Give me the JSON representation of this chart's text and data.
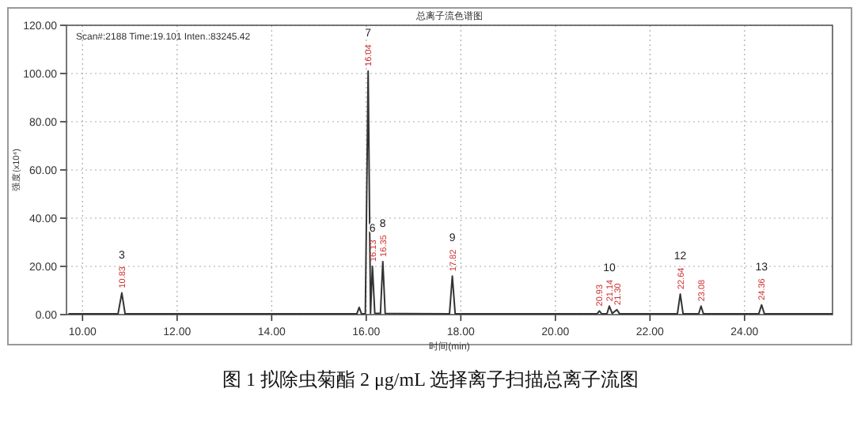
{
  "chart_data": {
    "type": "line",
    "title": "总离子流色谱图",
    "xlabel": "时间(min)",
    "ylabel": "强度(x10⁴)",
    "annotations": [
      "Scan#:2188  Time:19.101  Inten.:83245.42",
      "图 1  拟除虫菊酯 2 μg/mL 选择离子扫描总离子流图",
      {
        "text": "10.83",
        "x": 10.83,
        "y": 9
      },
      {
        "text": "3",
        "x": 10.83,
        "y": 9
      },
      {
        "text": "16.04",
        "x": 16.04,
        "y": 101
      },
      {
        "text": "7",
        "x": 16.04,
        "y": 101
      },
      {
        "text": "16.13",
        "x": 16.13,
        "y": 20
      },
      {
        "text": "6",
        "x": 16.13,
        "y": 20
      },
      {
        "text": "16.35",
        "x": 16.35,
        "y": 22
      },
      {
        "text": "8",
        "x": 16.35,
        "y": 22
      },
      {
        "text": "17.82",
        "x": 17.82,
        "y": 16
      },
      {
        "text": "9",
        "x": 17.82,
        "y": 16
      },
      {
        "text": "20.93",
        "x": 20.93,
        "y": 1.5
      },
      {
        "text": "21.14",
        "x": 21.14,
        "y": 3.5
      },
      {
        "text": "10",
        "x": 21.14,
        "y": 3.5
      },
      {
        "text": "21.30",
        "x": 21.3,
        "y": 2
      },
      {
        "text": "22.64",
        "x": 22.64,
        "y": 8.5
      },
      {
        "text": "12",
        "x": 22.64,
        "y": 8.5
      },
      {
        "text": "23.08",
        "x": 23.08,
        "y": 3.5
      },
      {
        "text": "24.36",
        "x": 24.36,
        "y": 4
      },
      {
        "text": "13",
        "x": 24.36,
        "y": 4
      }
    ],
    "x": [
      9.7,
      10.75,
      10.83,
      10.9,
      15.8,
      15.85,
      15.9,
      15.98,
      16.04,
      16.09,
      16.13,
      16.18,
      16.3,
      16.35,
      16.4,
      17.76,
      17.82,
      17.88,
      20.88,
      20.93,
      20.98,
      21.09,
      21.14,
      21.2,
      21.3,
      21.36,
      22.58,
      22.64,
      22.7,
      23.03,
      23.08,
      23.13,
      24.3,
      24.36,
      24.42,
      25.86
    ],
    "series": [
      {
        "color": "#333333",
        "values": [
          0.3,
          0.3,
          9,
          0.3,
          0.3,
          3,
          0.3,
          0.3,
          101,
          0.5,
          20,
          0.5,
          0.5,
          22,
          0.5,
          0.3,
          16,
          0.3,
          0.3,
          1.5,
          0.3,
          0.3,
          3.5,
          0.5,
          2,
          0.3,
          0.3,
          8.5,
          0.3,
          0.3,
          3.5,
          0.3,
          0.3,
          4,
          0.3,
          0.3
        ]
      }
    ],
    "xlim": [
      9.66,
      25.86
    ],
    "ylim": [
      0,
      120
    ],
    "xticks": [
      {
        "value": 10,
        "label": "10.00"
      },
      {
        "value": 12,
        "label": "12.00"
      },
      {
        "value": 14,
        "label": "14.00"
      },
      {
        "value": 16,
        "label": "16.00"
      },
      {
        "value": 18,
        "label": "18.00"
      },
      {
        "value": 20,
        "label": "20.00"
      },
      {
        "value": 22,
        "label": "22.00"
      },
      {
        "value": 24,
        "label": "24.00"
      }
    ],
    "yticks": [
      {
        "value": 0,
        "label": "0.00"
      },
      {
        "value": 20,
        "label": "20.00"
      },
      {
        "value": 40,
        "label": "40.00"
      },
      {
        "value": 60,
        "label": "60.00"
      },
      {
        "value": 80,
        "label": "80.00"
      },
      {
        "value": 100,
        "label": "100.00"
      },
      {
        "value": 120,
        "label": "120.00"
      }
    ],
    "grid": true,
    "legend": false,
    "marker": "none",
    "line_style": "solid"
  }
}
